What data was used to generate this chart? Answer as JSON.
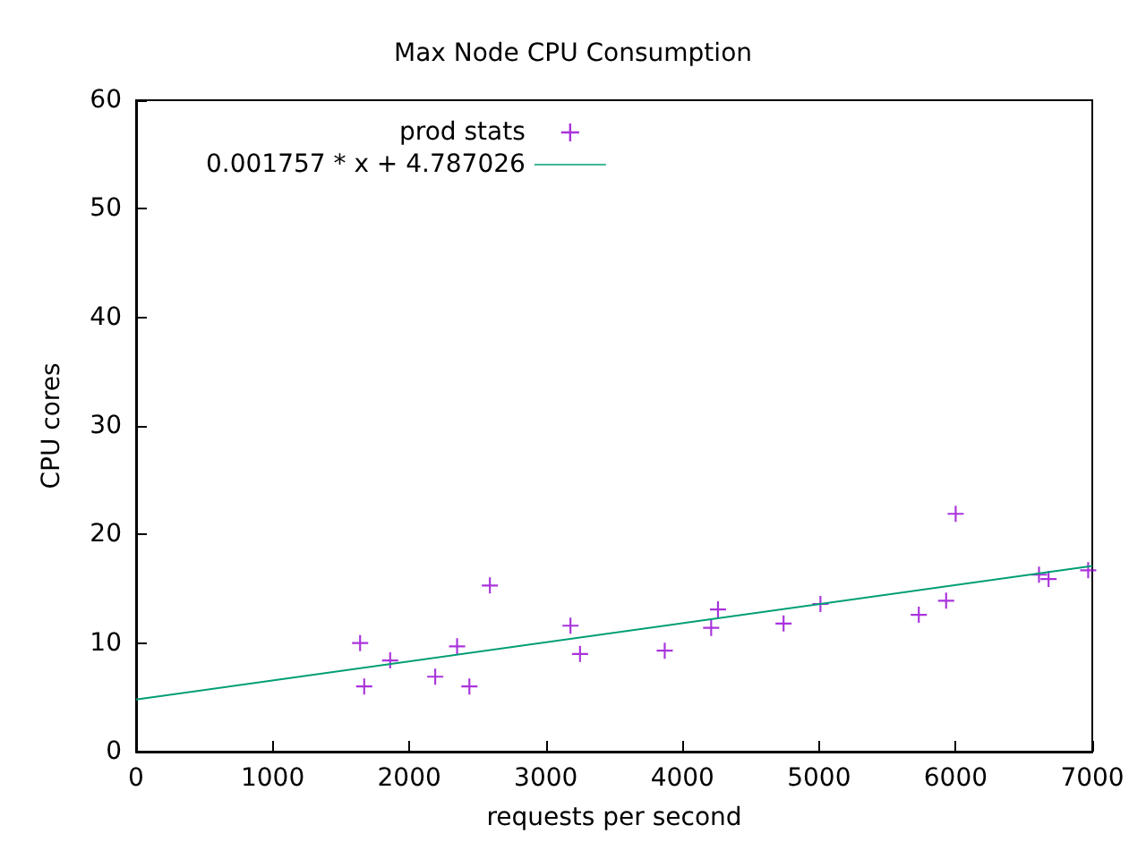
{
  "chart_data": {
    "type": "scatter",
    "title": "Max Node CPU Consumption",
    "xlabel": "requests per second",
    "ylabel": "CPU cores",
    "xlim": [
      0,
      7000
    ],
    "xticks": [
      0,
      1000,
      2000,
      3000,
      4000,
      5000,
      6000,
      7000
    ],
    "ylim": [
      0,
      60
    ],
    "yticks": [
      0,
      10,
      20,
      30,
      40,
      50,
      60
    ],
    "grid": false,
    "legend": "top left",
    "series": [
      {
        "name": "prod stats",
        "color": "#9400d3",
        "marker": "cross",
        "x": [
          1640,
          1670,
          1860,
          2190,
          2350,
          2440,
          2590,
          3180,
          3250,
          3870,
          4210,
          4260,
          4740,
          5010,
          5730,
          5930,
          6000,
          6610,
          6680,
          6970
        ],
        "values": [
          10.0,
          6.0,
          8.4,
          6.9,
          9.7,
          6.0,
          15.3,
          11.6,
          9.0,
          9.3,
          11.4,
          13.1,
          11.8,
          13.6,
          12.6,
          13.9,
          21.9,
          16.3,
          15.9,
          16.7
        ]
      },
      {
        "name": "0.001757 * x + 4.787026",
        "type": "line",
        "color": "#009e73",
        "x": [
          0,
          7000
        ],
        "values": [
          4.8,
          17.1
        ]
      }
    ]
  }
}
